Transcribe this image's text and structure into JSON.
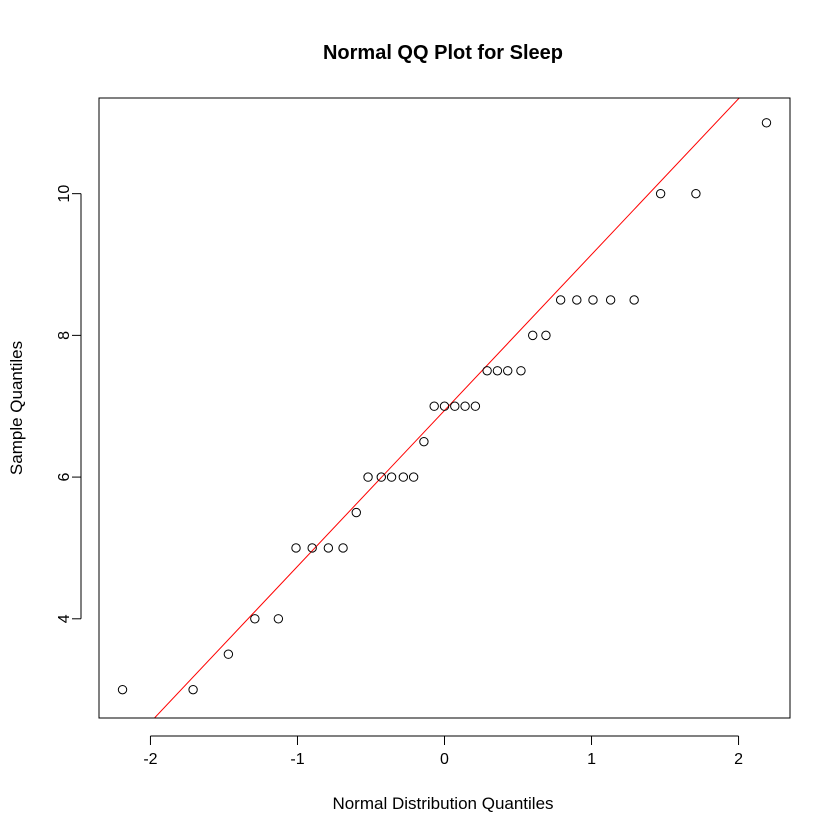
{
  "chart_data": {
    "type": "scatter",
    "title": "Normal QQ Plot for Sleep",
    "xlabel": "Normal Distribution Quantiles",
    "ylabel": "Sample Quantiles",
    "xlim": [
      -2.35,
      2.35
    ],
    "ylim": [
      2.6,
      11.35
    ],
    "x_ticks": [
      -2,
      -1,
      0,
      1,
      2
    ],
    "y_ticks": [
      4,
      6,
      8,
      10
    ],
    "points": {
      "x": [
        -2.19,
        -1.71,
        -1.47,
        -1.29,
        -1.13,
        -1.01,
        -0.9,
        -0.79,
        -0.69,
        -0.6,
        -0.52,
        -0.43,
        -0.36,
        -0.28,
        -0.21,
        -0.14,
        -0.07,
        0.0,
        0.07,
        0.14,
        0.21,
        0.29,
        0.36,
        0.43,
        0.52,
        0.6,
        0.69,
        0.79,
        0.9,
        1.01,
        1.13,
        1.29,
        1.47,
        1.71,
        2.19
      ],
      "y": [
        3,
        3,
        3.5,
        4,
        4,
        5,
        5,
        5,
        5,
        5.5,
        6,
        6,
        6,
        6,
        6,
        6.5,
        7,
        7,
        7,
        7,
        7,
        7.5,
        7.5,
        7.5,
        7.5,
        8,
        8,
        8.5,
        8.5,
        8.5,
        8.5,
        8.5,
        10,
        10,
        11
      ]
    },
    "reference_line": {
      "intercept": 6.94,
      "slope": 2.2,
      "color": "#ff0000"
    },
    "point_style": {
      "shape": "open-circle",
      "color": "#000000"
    },
    "grid": false,
    "legend": "none"
  }
}
